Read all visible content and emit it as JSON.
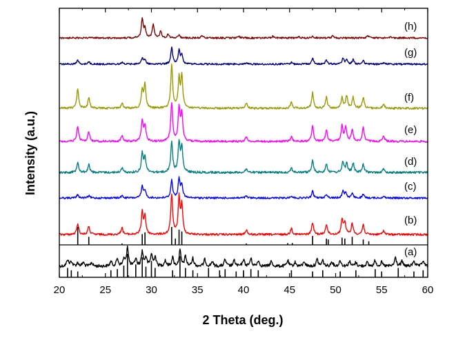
{
  "chart_data": {
    "type": "line",
    "xlabel": "2 Theta (deg.)",
    "ylabel": "Intensity (a.u.)",
    "xlim": [
      20,
      60
    ],
    "x_ticks": [
      "20",
      "25",
      "30",
      "35",
      "40",
      "45",
      "50",
      "55",
      "60"
    ],
    "y_ticks_shown": false,
    "grid": false,
    "legend": "none",
    "series": [
      {
        "name": "(a)",
        "color": "#000000",
        "peaks": [
          [
            20.9,
            0.35
          ],
          [
            21.3,
            0.25
          ],
          [
            22.0,
            0.18
          ],
          [
            22.6,
            0.2
          ],
          [
            23.5,
            0.2
          ],
          [
            25.6,
            0.25
          ],
          [
            26.3,
            0.4
          ],
          [
            27.0,
            0.35
          ],
          [
            27.4,
            1.0
          ],
          [
            28.3,
            0.4
          ],
          [
            29.0,
            0.75
          ],
          [
            29.4,
            0.45
          ],
          [
            30.0,
            0.6
          ],
          [
            30.4,
            0.5
          ],
          [
            31.5,
            0.3
          ],
          [
            32.3,
            0.45
          ],
          [
            33.1,
            0.8
          ],
          [
            33.7,
            0.5
          ],
          [
            34.5,
            0.4
          ],
          [
            35.8,
            0.35
          ],
          [
            36.6,
            0.25
          ],
          [
            38.0,
            0.35
          ],
          [
            39.0,
            0.3
          ],
          [
            40.0,
            0.35
          ],
          [
            40.8,
            0.4
          ],
          [
            41.6,
            0.3
          ],
          [
            43.0,
            0.25
          ],
          [
            44.8,
            0.3
          ],
          [
            45.6,
            0.2
          ],
          [
            46.6,
            0.25
          ],
          [
            48.0,
            0.35
          ],
          [
            48.6,
            0.3
          ],
          [
            49.6,
            0.25
          ],
          [
            50.5,
            0.3
          ],
          [
            51.5,
            0.25
          ],
          [
            52.2,
            0.2
          ],
          [
            53.4,
            0.2
          ],
          [
            54.3,
            0.3
          ],
          [
            55.0,
            0.2
          ],
          [
            56.5,
            0.45
          ],
          [
            57.2,
            0.25
          ],
          [
            58.5,
            0.3
          ],
          [
            59.5,
            0.3
          ]
        ]
      },
      {
        "name": "(b)",
        "color": "#ff0000",
        "peaks": [
          [
            22.0,
            0.28
          ],
          [
            23.2,
            0.2
          ],
          [
            26.8,
            0.18
          ],
          [
            29.0,
            0.55
          ],
          [
            29.3,
            0.45
          ],
          [
            32.2,
            1.0
          ],
          [
            33.0,
            0.9
          ],
          [
            33.3,
            0.7
          ],
          [
            40.3,
            0.12
          ],
          [
            45.2,
            0.16
          ],
          [
            47.5,
            0.3
          ],
          [
            49.0,
            0.26
          ],
          [
            50.7,
            0.38
          ],
          [
            51.0,
            0.3
          ],
          [
            51.8,
            0.28
          ],
          [
            53.0,
            0.25
          ],
          [
            55.2,
            0.1
          ]
        ]
      },
      {
        "name": "(c)",
        "color": "#0000ff",
        "peaks": [
          [
            22.0,
            0.15
          ],
          [
            23.2,
            0.1
          ],
          [
            26.8,
            0.1
          ],
          [
            29.0,
            0.5
          ],
          [
            29.3,
            0.35
          ],
          [
            32.2,
            0.8
          ],
          [
            33.0,
            0.85
          ],
          [
            33.3,
            0.6
          ],
          [
            40.3,
            0.08
          ],
          [
            45.2,
            0.1
          ],
          [
            47.5,
            0.3
          ],
          [
            49.0,
            0.18
          ],
          [
            50.8,
            0.3
          ],
          [
            51.1,
            0.24
          ],
          [
            51.8,
            0.2
          ],
          [
            53.0,
            0.15
          ],
          [
            55.2,
            0.08
          ]
        ]
      },
      {
        "name": "(d)",
        "color": "#008080",
        "peaks": [
          [
            22.0,
            0.35
          ],
          [
            23.2,
            0.25
          ],
          [
            26.8,
            0.15
          ],
          [
            29.0,
            0.6
          ],
          [
            29.3,
            0.5
          ],
          [
            32.2,
            1.0
          ],
          [
            33.0,
            0.95
          ],
          [
            33.3,
            0.8
          ],
          [
            40.3,
            0.12
          ],
          [
            45.2,
            0.15
          ],
          [
            47.5,
            0.38
          ],
          [
            49.0,
            0.28
          ],
          [
            50.8,
            0.35
          ],
          [
            51.2,
            0.3
          ],
          [
            51.9,
            0.3
          ],
          [
            53.0,
            0.25
          ],
          [
            55.2,
            0.1
          ]
        ]
      },
      {
        "name": "(e)",
        "color": "#ff00ff",
        "peaks": [
          [
            22.0,
            0.4
          ],
          [
            23.2,
            0.25
          ],
          [
            26.8,
            0.15
          ],
          [
            29.0,
            0.55
          ],
          [
            29.3,
            0.4
          ],
          [
            32.2,
            1.0
          ],
          [
            33.0,
            0.85
          ],
          [
            33.3,
            0.7
          ],
          [
            40.3,
            0.12
          ],
          [
            45.2,
            0.12
          ],
          [
            47.5,
            0.4
          ],
          [
            49.0,
            0.3
          ],
          [
            50.7,
            0.4
          ],
          [
            51.1,
            0.35
          ],
          [
            51.8,
            0.3
          ],
          [
            53.0,
            0.35
          ],
          [
            55.2,
            0.15
          ]
        ]
      },
      {
        "name": "(f)",
        "color": "#999900",
        "peaks": [
          [
            22.0,
            0.45
          ],
          [
            23.2,
            0.25
          ],
          [
            26.8,
            0.12
          ],
          [
            29.0,
            0.4
          ],
          [
            29.3,
            0.55
          ],
          [
            32.2,
            1.0
          ],
          [
            33.0,
            0.65
          ],
          [
            33.3,
            0.7
          ],
          [
            40.3,
            0.12
          ],
          [
            45.2,
            0.15
          ],
          [
            47.5,
            0.35
          ],
          [
            49.0,
            0.25
          ],
          [
            50.7,
            0.25
          ],
          [
            51.2,
            0.28
          ],
          [
            51.9,
            0.25
          ],
          [
            53.0,
            0.25
          ],
          [
            55.2,
            0.1
          ]
        ]
      },
      {
        "name": "(g)",
        "color": "#000080",
        "peaks": [
          [
            22.0,
            0.25
          ],
          [
            23.2,
            0.15
          ],
          [
            26.8,
            0.1
          ],
          [
            29.0,
            0.35
          ],
          [
            29.3,
            0.25
          ],
          [
            32.2,
            0.95
          ],
          [
            33.0,
            0.8
          ],
          [
            33.3,
            0.5
          ],
          [
            40.3,
            0.08
          ],
          [
            45.2,
            0.1
          ],
          [
            47.5,
            0.35
          ],
          [
            49.0,
            0.25
          ],
          [
            50.8,
            0.35
          ],
          [
            51.2,
            0.25
          ],
          [
            51.9,
            0.25
          ],
          [
            53.0,
            0.2
          ],
          [
            55.2,
            0.08
          ]
        ]
      },
      {
        "name": "(h)",
        "color": "#800000",
        "peaks": [
          [
            29.0,
            1.0
          ],
          [
            29.3,
            0.5
          ],
          [
            30.2,
            0.75
          ],
          [
            31.0,
            0.35
          ],
          [
            31.8,
            0.2
          ],
          [
            33.0,
            0.15
          ],
          [
            35.5,
            0.1
          ],
          [
            39.5,
            0.08
          ],
          [
            43.2,
            0.08
          ],
          [
            46.0,
            0.08
          ],
          [
            47.5,
            0.1
          ],
          [
            49.7,
            0.12
          ],
          [
            53.5,
            0.12
          ],
          [
            56.0,
            0.08
          ]
        ]
      }
    ],
    "reference_ticks": [
      {
        "group": "upper",
        "color": "#000000",
        "positions": [
          [
            22.0,
            1.0
          ],
          [
            23.2,
            0.45
          ],
          [
            29.0,
            0.6
          ],
          [
            29.3,
            0.7
          ],
          [
            32.2,
            1.0
          ],
          [
            32.6,
            0.35
          ],
          [
            33.0,
            0.85
          ],
          [
            33.3,
            0.75
          ],
          [
            47.5,
            0.5
          ],
          [
            49.0,
            0.35
          ],
          [
            49.2,
            0.3
          ],
          [
            50.7,
            0.4
          ],
          [
            51.0,
            0.35
          ],
          [
            51.8,
            0.45
          ],
          [
            53.0,
            0.3
          ],
          [
            53.6,
            0.2
          ],
          [
            44.8,
            0.1
          ],
          [
            45.3,
            0.1
          ],
          [
            40.3,
            0.08
          ],
          [
            26.8,
            0.08
          ]
        ]
      },
      {
        "group": "lower",
        "color": "#000000",
        "positions": [
          [
            20.9,
            0.4
          ],
          [
            21.3,
            0.3
          ],
          [
            22.0,
            0.25
          ],
          [
            25.6,
            0.3
          ],
          [
            26.3,
            0.35
          ],
          [
            27.0,
            0.5
          ],
          [
            27.4,
            1.0
          ],
          [
            28.3,
            0.55
          ],
          [
            29.0,
            0.85
          ],
          [
            29.4,
            0.45
          ],
          [
            30.0,
            0.7
          ],
          [
            30.4,
            0.4
          ],
          [
            32.3,
            0.3
          ],
          [
            33.1,
            0.9
          ],
          [
            33.7,
            0.4
          ],
          [
            34.5,
            0.3
          ],
          [
            36.2,
            0.4
          ],
          [
            37.4,
            0.3
          ],
          [
            38.0,
            0.35
          ],
          [
            39.2,
            0.25
          ],
          [
            40.0,
            0.3
          ],
          [
            40.8,
            0.35
          ],
          [
            41.6,
            0.3
          ],
          [
            45.2,
            0.3
          ],
          [
            47.5,
            0.25
          ],
          [
            48.6,
            0.3
          ],
          [
            50.5,
            0.25
          ],
          [
            52.2,
            0.3
          ],
          [
            54.3,
            0.35
          ],
          [
            55.0,
            0.25
          ],
          [
            56.8,
            0.4
          ],
          [
            58.5,
            0.25
          ],
          [
            59.5,
            0.3
          ]
        ]
      }
    ],
    "curve_labels": [
      "(h)",
      "(g)",
      "(f)",
      "(e)",
      "(d)",
      "(c)",
      "(b)",
      "(a)"
    ]
  }
}
